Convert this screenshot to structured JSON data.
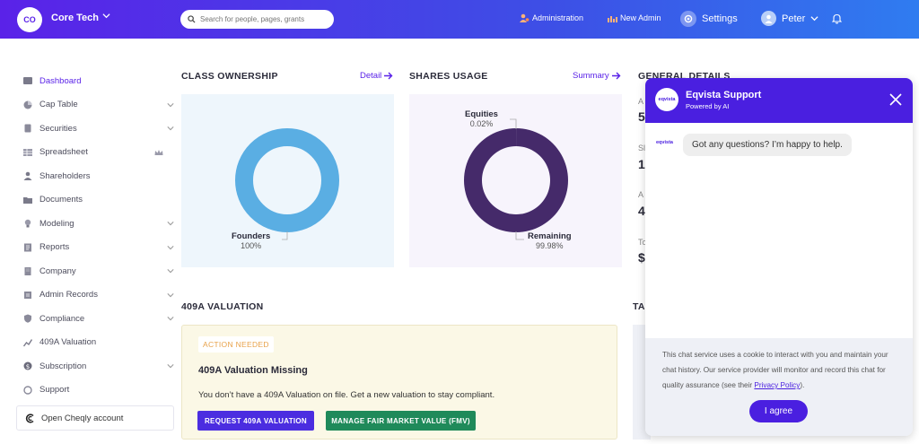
{
  "topbar": {
    "logo_initials": "CO",
    "company_name": "Core Tech",
    "search_placeholder": "Search for people, pages, grants",
    "administration_label": "Administration",
    "new_admin_label": "New Admin",
    "settings_label": "Settings",
    "user_name": "Peter"
  },
  "sidebar": {
    "items": [
      {
        "label": "Dashboard",
        "icon": "dashboard-icon",
        "active": true
      },
      {
        "label": "Cap Table",
        "icon": "pie-icon",
        "chevron": true
      },
      {
        "label": "Securities",
        "icon": "document-icon",
        "chevron": true
      },
      {
        "label": "Spreadsheet",
        "icon": "spreadsheet-icon",
        "crown": true
      },
      {
        "label": "Shareholders",
        "icon": "person-icon"
      },
      {
        "label": "Documents",
        "icon": "folder-icon"
      },
      {
        "label": "Modeling",
        "icon": "bulb-icon",
        "chevron": true
      },
      {
        "label": "Reports",
        "icon": "report-icon",
        "chevron": true
      },
      {
        "label": "Company",
        "icon": "building-icon",
        "chevron": true
      },
      {
        "label": "Admin Records",
        "icon": "records-icon",
        "chevron": true
      },
      {
        "label": "Compliance",
        "icon": "shield-icon",
        "chevron": true
      },
      {
        "label": "409A Valuation",
        "icon": "chart-icon"
      },
      {
        "label": "Subscription",
        "icon": "dollar-icon",
        "chevron": true
      },
      {
        "label": "Support",
        "icon": "support-icon"
      }
    ],
    "cheqly_label": "Open Cheqly account"
  },
  "class_ownership": {
    "title": "CLASS OWNERSHIP",
    "link": "Detail",
    "slice_name": "Founders",
    "slice_value": "100%"
  },
  "shares_usage": {
    "title": "SHARES USAGE",
    "link": "Summary",
    "equities_name": "Equities",
    "equities_value": "0.02%",
    "remaining_name": "Remaining",
    "remaining_value": "99.98%"
  },
  "chart_data": [
    {
      "type": "pie",
      "title": "CLASS OWNERSHIP",
      "categories": [
        "Founders"
      ],
      "values": [
        100
      ],
      "colors": [
        "#5aaee3"
      ]
    },
    {
      "type": "pie",
      "title": "SHARES USAGE",
      "categories": [
        "Equities",
        "Remaining"
      ],
      "values": [
        0.02,
        99.98
      ],
      "colors": [
        "#aaa0c8",
        "#452a6a"
      ]
    }
  ],
  "general_details": {
    "title": "GENERAL DETAILS",
    "rows": [
      {
        "label": "A",
        "value": "5"
      },
      {
        "label": "Sl",
        "value": "1("
      },
      {
        "label": "A",
        "value": "4"
      },
      {
        "label": "To",
        "value": "$"
      }
    ]
  },
  "valuation": {
    "section_title": "409A VALUATION",
    "badge": "ACTION NEEDED",
    "title": "409A Valuation Missing",
    "text": "You don’t have a 409A Valuation on file. Get a new valuation to stay compliant.",
    "request_button": "REQUEST 409A VALUATION",
    "fmv_button": "MANAGE FAIR MARKET VALUE (FMV)"
  },
  "partial_section_title": "TA",
  "chat": {
    "logo_text": "eqvista",
    "title": "Eqvista Support",
    "subtitle": "Powered by AI",
    "bot_tag": "eqvista",
    "message": "Got any questions? I’m happy to help.",
    "consent_before": "This chat service uses a cookie to interact with you and maintain your chat history. Our service provider will monitor and record this chat for quality assurance (see their ",
    "privacy_link": "Privacy Policy",
    "consent_after": ").",
    "agree_button": "I agree"
  },
  "colors": {
    "brand_purple": "#5a22e8",
    "founders_blue": "#5aaee3",
    "remaining_purple": "#452a6a",
    "equities_lavender": "#aaa0c8"
  }
}
